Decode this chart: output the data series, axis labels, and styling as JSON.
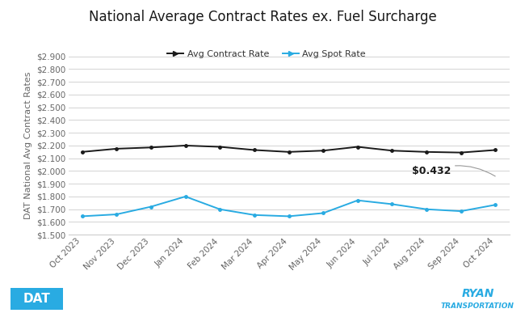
{
  "title": "National Average Contract Rates ex. Fuel Surcharge",
  "ylabel": "DAT National Avg Contract Rates",
  "categories": [
    "Oct 2023",
    "Nov 2023",
    "Dec 2023",
    "Jan 2024",
    "Feb 2024",
    "Mar 2024",
    "Apr 2024",
    "May 2024",
    "Jun 2024",
    "Jul 2024",
    "Aug 2024",
    "Sep 2024",
    "Oct 2024"
  ],
  "contract_rate": [
    2.15,
    2.175,
    2.185,
    2.2,
    2.19,
    2.165,
    2.15,
    2.16,
    2.19,
    2.16,
    2.15,
    2.145,
    2.165
  ],
  "spot_rate": [
    1.645,
    1.66,
    1.72,
    1.8,
    1.7,
    1.655,
    1.645,
    1.67,
    1.77,
    1.74,
    1.7,
    1.685,
    1.735
  ],
  "contract_color": "#1a1a1a",
  "spot_color": "#29abe2",
  "ylim_min": 1.5,
  "ylim_max": 2.9,
  "ytick_step": 0.1,
  "annotation_text": "$0.432",
  "bg_color": "#ffffff",
  "grid_color": "#cccccc",
  "title_fontsize": 12,
  "label_fontsize": 8,
  "tick_fontsize": 7.5,
  "legend_fontsize": 8,
  "dat_logo_color": "#29abe2",
  "ryan_logo_color": "#29abe2"
}
